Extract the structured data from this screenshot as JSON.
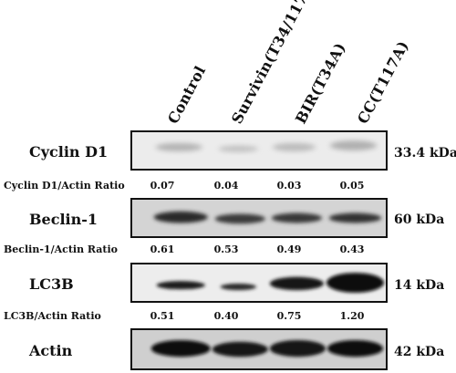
{
  "lanes": [
    "Control",
    "Survivin(T34/117A)",
    "BIR(T34A)",
    "CC(T117A)"
  ],
  "blots": [
    {
      "label": "Cyclin D1",
      "size": "33.4 kDa",
      "ratio_label": "Cyclin D1/Actin Ratio",
      "ratios": [
        "0.07",
        "0.04",
        "0.03",
        "0.05"
      ]
    },
    {
      "label": "Beclin-1",
      "size": "60 kDa",
      "ratio_label": "Beclin-1/Actin Ratio",
      "ratios": [
        "0.61",
        "0.53",
        "0.49",
        "0.43"
      ]
    },
    {
      "label": "LC3B",
      "size": "14 kDa",
      "ratio_label": "LC3B/Actin Ratio",
      "ratios": [
        "0.51",
        "0.40",
        "0.75",
        "1.20"
      ]
    },
    {
      "label": "Actin",
      "size": "42 kDa"
    }
  ]
}
